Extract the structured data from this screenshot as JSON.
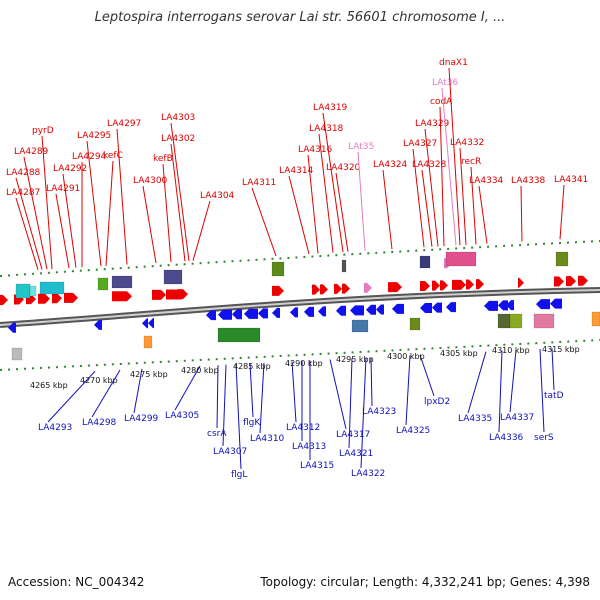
{
  "title": "Leptospira interrogans serovar Lai str. 56601 chromosome I, ...",
  "footer": {
    "accession": "Accession: NC_004342",
    "summary": "Topology: circular; Length: 4,332,241 bp; Genes: 4,398"
  },
  "colors": {
    "forward_label": "#dd0000",
    "reverse_label": "#1111bb",
    "trna_label": "#e37bc4",
    "backbone": "#8a8a8a"
  },
  "kbp_ticks": [
    "4265 kbp",
    "4270 kbp",
    "4275 kbp",
    "4280 kbp",
    "4285 kbp",
    "4290 kbp",
    "4295 kbp",
    "4300 kbp",
    "4305 kbp",
    "4310 kbp",
    "4315 kbp"
  ],
  "forward_genes": [
    {
      "label": "LA4287",
      "kind": "gene"
    },
    {
      "label": "LA4288",
      "kind": "gene"
    },
    {
      "label": "LA4289",
      "kind": "gene"
    },
    {
      "label": "pyrD",
      "kind": "gene"
    },
    {
      "label": "LA4291",
      "kind": "gene"
    },
    {
      "label": "LA4292",
      "kind": "gene"
    },
    {
      "label": "LA4294",
      "kind": "gene"
    },
    {
      "label": "LA4295",
      "kind": "gene"
    },
    {
      "label": "kefC",
      "kind": "gene"
    },
    {
      "label": "LA4297",
      "kind": "gene"
    },
    {
      "label": "LA4300",
      "kind": "gene"
    },
    {
      "label": "kefB",
      "kind": "gene"
    },
    {
      "label": "LA4302",
      "kind": "gene"
    },
    {
      "label": "LA4303",
      "kind": "gene"
    },
    {
      "label": "LA4304",
      "kind": "gene"
    },
    {
      "label": "LA4311",
      "kind": "gene"
    },
    {
      "label": "LA4314",
      "kind": "gene"
    },
    {
      "label": "LA4316",
      "kind": "gene"
    },
    {
      "label": "LA4318",
      "kind": "gene"
    },
    {
      "label": "LA4319",
      "kind": "gene"
    },
    {
      "label": "LA4320",
      "kind": "gene"
    },
    {
      "label": "LAt35",
      "kind": "trna"
    },
    {
      "label": "LA4324",
      "kind": "gene"
    },
    {
      "label": "LA4327",
      "kind": "gene"
    },
    {
      "label": "LA4328",
      "kind": "gene"
    },
    {
      "label": "LA4329",
      "kind": "gene"
    },
    {
      "label": "codA",
      "kind": "gene"
    },
    {
      "label": "LAt36",
      "kind": "trna"
    },
    {
      "label": "dnaX1",
      "kind": "gene"
    },
    {
      "label": "LA4332",
      "kind": "gene"
    },
    {
      "label": "recR",
      "kind": "gene"
    },
    {
      "label": "LA4334",
      "kind": "gene"
    },
    {
      "label": "LA4338",
      "kind": "gene"
    },
    {
      "label": "LA4341",
      "kind": "gene"
    }
  ],
  "reverse_genes": [
    "LA4293",
    "LA4298",
    "LA4299",
    "LA4305",
    "csrA",
    "LA4307",
    "flgL",
    "flgK",
    "LA4310",
    "LA4312",
    "LA4313",
    "LA4315",
    "LA4317",
    "LA4321",
    "LA4322",
    "LA4323",
    "LA4325",
    "lpxD2",
    "LA4335",
    "LA4336",
    "LA4337",
    "serS",
    "tatD"
  ]
}
